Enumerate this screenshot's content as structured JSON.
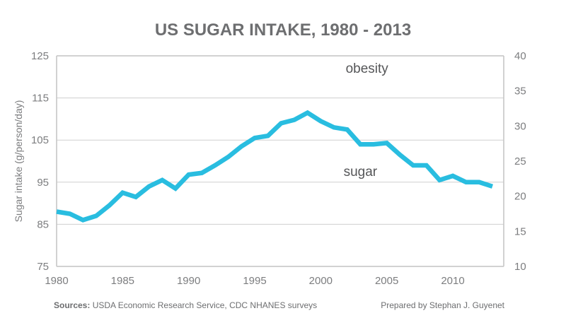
{
  "chart_data": {
    "type": "line",
    "title": "US SUGAR INTAKE, 1980 - 2013",
    "xlabel": "",
    "ylabel": "Sugar intake (g/person/day)",
    "y2label": "",
    "xlim": [
      1980,
      2013
    ],
    "ylim": [
      75,
      125
    ],
    "y2lim": [
      10,
      40
    ],
    "x_ticks": [
      "1980",
      "1985",
      "1990",
      "1995",
      "2000",
      "2005",
      "2010"
    ],
    "y_ticks": [
      "75",
      "85",
      "95",
      "105",
      "115",
      "125"
    ],
    "y2_ticks": [
      "10",
      "15",
      "20",
      "25",
      "30",
      "35",
      "40"
    ],
    "grid": true,
    "annotations": [
      {
        "text": "obesity",
        "x": 2003.5,
        "y": 121
      },
      {
        "text": "sugar",
        "x": 2003,
        "y": 96.5
      }
    ],
    "series": [
      {
        "name": "sugar",
        "color": "#29bde0",
        "x": [
          1980,
          1981,
          1982,
          1983,
          1984,
          1985,
          1986,
          1987,
          1988,
          1989,
          1990,
          1991,
          1992,
          1993,
          1994,
          1995,
          1996,
          1997,
          1998,
          1999,
          2000,
          2001,
          2002,
          2003,
          2004,
          2005,
          2006,
          2007,
          2008,
          2009,
          2010,
          2011,
          2012,
          2013
        ],
        "y": [
          88,
          87.5,
          86,
          87,
          89.5,
          92.5,
          91.5,
          94,
          95.5,
          93.5,
          96.8,
          97.2,
          99,
          101,
          103.5,
          105.5,
          106,
          109,
          109.8,
          111.5,
          109.5,
          108,
          107.5,
          104,
          104,
          104.3,
          101.5,
          99,
          99,
          95.5,
          96.5,
          95,
          95,
          94
        ]
      }
    ]
  },
  "footer": {
    "sources_label": "Sources:",
    "sources_text": " USDA Economic Research Service, CDC NHANES surveys",
    "credit": "Prepared by Stephan J. Guyenet"
  }
}
